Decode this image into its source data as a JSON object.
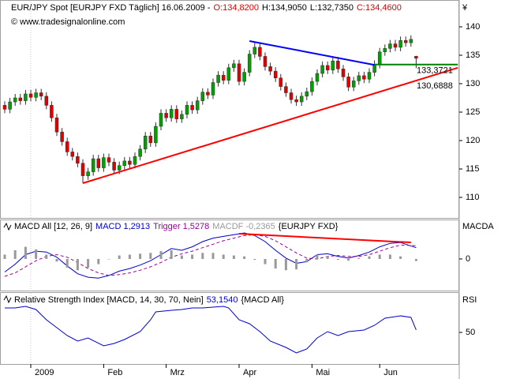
{
  "chart_data": [
    {
      "type": "candlestick",
      "title": "EUR/JPY Spot [EURJPY FXD  Täglich] 16.06.2009 -",
      "header_values": [
        {
          "text": "O:134,8200",
          "color": "#e00000"
        },
        {
          "text": "H:134,9050",
          "color": "#000000"
        },
        {
          "text": "L:132,7350",
          "color": "#000000"
        },
        {
          "text": "C:134,4600",
          "color": "#e00000"
        }
      ],
      "watermark": "© www.tradesignalonline.com",
      "y_unit": "¥",
      "up_color": "#00a000",
      "down_color": "#e00000",
      "ylim": [
        106.39,
        144.44
      ],
      "yticks": [
        110,
        115,
        120,
        125,
        130,
        135,
        140
      ],
      "xticks": [
        {
          "value": 5,
          "label": "2009"
        },
        {
          "value": 19,
          "label": "Feb"
        },
        {
          "value": 31,
          "label": "Mrz"
        },
        {
          "value": 45,
          "label": "Apr"
        },
        {
          "value": 59,
          "label": "Mai"
        },
        {
          "value": 72,
          "label": "Jun"
        }
      ],
      "open": [
        126.2,
        125.5,
        126.8,
        127.5,
        127.0,
        128.2,
        127.6,
        128.4,
        127.8,
        126.2,
        124.0,
        121.5,
        119.8,
        118.0,
        117.2,
        116.0,
        113.8,
        114.5,
        116.8,
        115.2,
        117.0,
        116.2,
        114.8,
        115.6,
        116.4,
        115.8,
        117.2,
        118.5,
        120.8,
        119.6,
        122.5,
        124.8,
        124.0,
        125.5,
        123.8,
        124.6,
        126.2,
        125.4,
        127.0,
        128.5,
        128.0,
        130.2,
        131.5,
        130.6,
        132.8,
        133.5,
        130.4,
        132.0,
        135.2,
        136.4,
        134.8,
        133.0,
        132.2,
        131.0,
        129.5,
        128.4,
        127.2,
        126.8,
        127.8,
        128.6,
        130.4,
        131.8,
        133.2,
        132.4,
        134.0,
        132.6,
        131.2,
        129.4,
        130.5,
        131.4,
        130.8,
        132.0,
        133.4,
        135.6,
        136.2,
        137.0,
        136.4,
        137.6,
        137.2,
        134.82
      ],
      "high": [
        126.9,
        127.5,
        128.2,
        128.2,
        128.9,
        128.9,
        129.1,
        129.1,
        128.5,
        126.9,
        124.7,
        122.2,
        120.5,
        118.7,
        117.9,
        116.7,
        115.2,
        117.5,
        117.5,
        117.7,
        117.7,
        116.9,
        116.3,
        117.1,
        117.1,
        117.9,
        119.2,
        121.5,
        121.5,
        123.2,
        125.5,
        125.5,
        126.2,
        126.2,
        125.3,
        126.9,
        126.9,
        127.7,
        129.2,
        129.2,
        130.9,
        132.2,
        132.2,
        133.5,
        134.2,
        134.2,
        132.7,
        135.9,
        137.4,
        137.1,
        135.5,
        133.7,
        132.9,
        131.7,
        130.2,
        129.1,
        127.9,
        128.5,
        129.3,
        131.1,
        132.5,
        133.9,
        133.9,
        134.7,
        134.7,
        133.3,
        131.9,
        131.2,
        132.1,
        132.1,
        132.7,
        134.1,
        136.3,
        136.9,
        137.7,
        137.7,
        138.3,
        138.3,
        138.5,
        134.905
      ],
      "low": [
        124.8,
        124.8,
        126.1,
        126.3,
        126.3,
        126.9,
        126.9,
        127.1,
        125.5,
        123.3,
        120.8,
        119.1,
        117.3,
        116.5,
        115.3,
        112.5,
        113.1,
        113.8,
        114.5,
        114.5,
        115.5,
        114.1,
        114.1,
        114.9,
        115.1,
        115.1,
        116.5,
        117.8,
        118.9,
        118.9,
        121.8,
        123.3,
        123.3,
        123.1,
        123.1,
        123.9,
        124.7,
        124.7,
        126.3,
        127.3,
        127.3,
        129.5,
        129.9,
        129.9,
        132.1,
        129.7,
        129.7,
        131.3,
        134.5,
        134.1,
        132.3,
        131.5,
        130.3,
        128.8,
        127.7,
        126.5,
        126.1,
        126.1,
        127.1,
        127.9,
        129.7,
        131.1,
        131.7,
        131.7,
        131.9,
        130.5,
        128.7,
        128.7,
        129.8,
        130.1,
        130.1,
        131.3,
        132.7,
        134.9,
        135.5,
        135.7,
        135.7,
        136.5,
        136.5,
        132.735
      ],
      "close": [
        125.5,
        126.8,
        127.5,
        127.0,
        128.2,
        127.6,
        128.4,
        127.8,
        126.2,
        124.0,
        121.5,
        119.8,
        118.0,
        117.2,
        116.0,
        113.8,
        114.5,
        116.8,
        115.2,
        117.0,
        116.2,
        114.8,
        115.6,
        116.4,
        115.8,
        117.2,
        118.5,
        120.8,
        119.6,
        122.5,
        124.8,
        124.0,
        125.5,
        123.8,
        124.6,
        126.2,
        125.4,
        127.0,
        128.5,
        128.0,
        130.2,
        131.5,
        130.6,
        132.8,
        133.5,
        130.4,
        132.0,
        135.2,
        136.4,
        134.8,
        133.0,
        132.2,
        131.0,
        129.5,
        128.4,
        127.2,
        126.8,
        127.8,
        128.6,
        130.4,
        131.8,
        133.2,
        132.4,
        134.0,
        132.6,
        131.2,
        129.4,
        130.5,
        131.4,
        130.8,
        132.0,
        133.4,
        135.6,
        136.2,
        137.0,
        136.4,
        137.6,
        137.2,
        137.8,
        134.46
      ],
      "lines": [
        {
          "color": "#0000ff",
          "x": [
            47,
            71
          ],
          "values": [
            137.5,
            133.3
          ]
        },
        {
          "color": "#ff0000",
          "x": [
            15,
            87
          ],
          "values": [
            112.5,
            132.8
          ]
        },
        {
          "color": "#008000",
          "x": [
            71,
            87
          ],
          "values": [
            133.37,
            133.37
          ]
        }
      ],
      "level_labels": [
        {
          "label": "133,3721",
          "value": 133.3721,
          "color": "#008000"
        },
        {
          "label": "130,6888",
          "value": 130.6888,
          "color": "#ff0000"
        }
      ]
    },
    {
      "type": "macd",
      "title": "MACD All [12, 26, 9]",
      "suffix": "{EURJPY FXD}",
      "axis_label": "MACDA",
      "ylim": [
        -3.64,
        4.45
      ],
      "yticks": [
        0
      ],
      "x": [
        0,
        2,
        4,
        6,
        8,
        10,
        12,
        14,
        16,
        18,
        20,
        22,
        24,
        26,
        28,
        30,
        32,
        34,
        36,
        38,
        40,
        42,
        44,
        46,
        48,
        50,
        52,
        54,
        56,
        58,
        60,
        62,
        64,
        66,
        68,
        70,
        72,
        74,
        76,
        79
      ],
      "series": [
        {
          "name": "MACD 1,2913",
          "color": "#0000cc",
          "kind": "line",
          "values": [
            -1.5,
            -0.6,
            0.5,
            0.9,
            0.8,
            0.2,
            -0.8,
            -1.7,
            -2.1,
            -2.2,
            -1.9,
            -1.4,
            -1.1,
            -0.7,
            -0.2,
            0.5,
            1.2,
            1.0,
            1.4,
            2.0,
            2.4,
            2.6,
            2.8,
            3.0,
            2.7,
            2.0,
            1.0,
            0.1,
            -0.5,
            -0.3,
            0.5,
            0.6,
            0.3,
            0.1,
            0.4,
            0.8,
            1.4,
            1.8,
            1.9,
            1.2913
          ]
        },
        {
          "name": "Trigger 1,5278",
          "color": "#990099",
          "kind": "dashed",
          "values": [
            -2.0,
            -1.6,
            -0.9,
            -0.2,
            0.3,
            0.5,
            0.2,
            -0.4,
            -1.1,
            -1.6,
            -1.9,
            -1.8,
            -1.6,
            -1.3,
            -0.9,
            -0.4,
            0.2,
            0.6,
            0.9,
            1.3,
            1.7,
            2.1,
            2.4,
            2.7,
            2.8,
            2.6,
            2.1,
            1.4,
            0.7,
            0.1,
            0.0,
            0.3,
            0.4,
            0.3,
            0.3,
            0.5,
            0.9,
            1.3,
            1.6,
            1.5278
          ]
        },
        {
          "name": "MACDF -0,2365",
          "color": "#999999",
          "kind": "bar",
          "values": [
            0.5,
            1.0,
            1.4,
            1.1,
            0.5,
            -0.3,
            -1.0,
            -1.3,
            -1.0,
            -0.6,
            0.0,
            0.4,
            0.5,
            0.6,
            0.7,
            0.9,
            1.0,
            0.4,
            0.5,
            0.7,
            0.7,
            0.5,
            0.4,
            0.3,
            -0.1,
            -0.6,
            -1.1,
            -1.3,
            -1.2,
            -0.4,
            0.5,
            0.3,
            -0.1,
            -0.2,
            0.1,
            0.3,
            0.5,
            0.5,
            0.3,
            -0.2365
          ]
        }
      ],
      "lines": [
        {
          "color": "#ff0000",
          "x": [
            45,
            78
          ],
          "values": [
            2.9,
            1.9
          ]
        }
      ]
    },
    {
      "type": "rsi",
      "title": "Relative Strength Index [MACD, 14, 30, 70, Nein]",
      "suffix": "{MACD All}",
      "axis_label": "RSI",
      "ylim": [
        10,
        100
      ],
      "yticks": [
        50
      ],
      "x": [
        0,
        2,
        4,
        6,
        8,
        10,
        12,
        14,
        16,
        19,
        21,
        23,
        26,
        28,
        29,
        32,
        34,
        36,
        38,
        42,
        43,
        45,
        47,
        49,
        51,
        54,
        56,
        58,
        60,
        62,
        64,
        66,
        69,
        71,
        73,
        76,
        78,
        79
      ],
      "series": [
        {
          "name": "53,1540",
          "color": "#0000cc",
          "kind": "line",
          "values": [
            81,
            81,
            83,
            79,
            66,
            56,
            46,
            39,
            43,
            33,
            36,
            41,
            51,
            66,
            76,
            78,
            79,
            81,
            81,
            83,
            81,
            66,
            61,
            51,
            39,
            31,
            24,
            29,
            43,
            51,
            46,
            51,
            53,
            59,
            68,
            71,
            69,
            53.154
          ]
        }
      ]
    }
  ]
}
